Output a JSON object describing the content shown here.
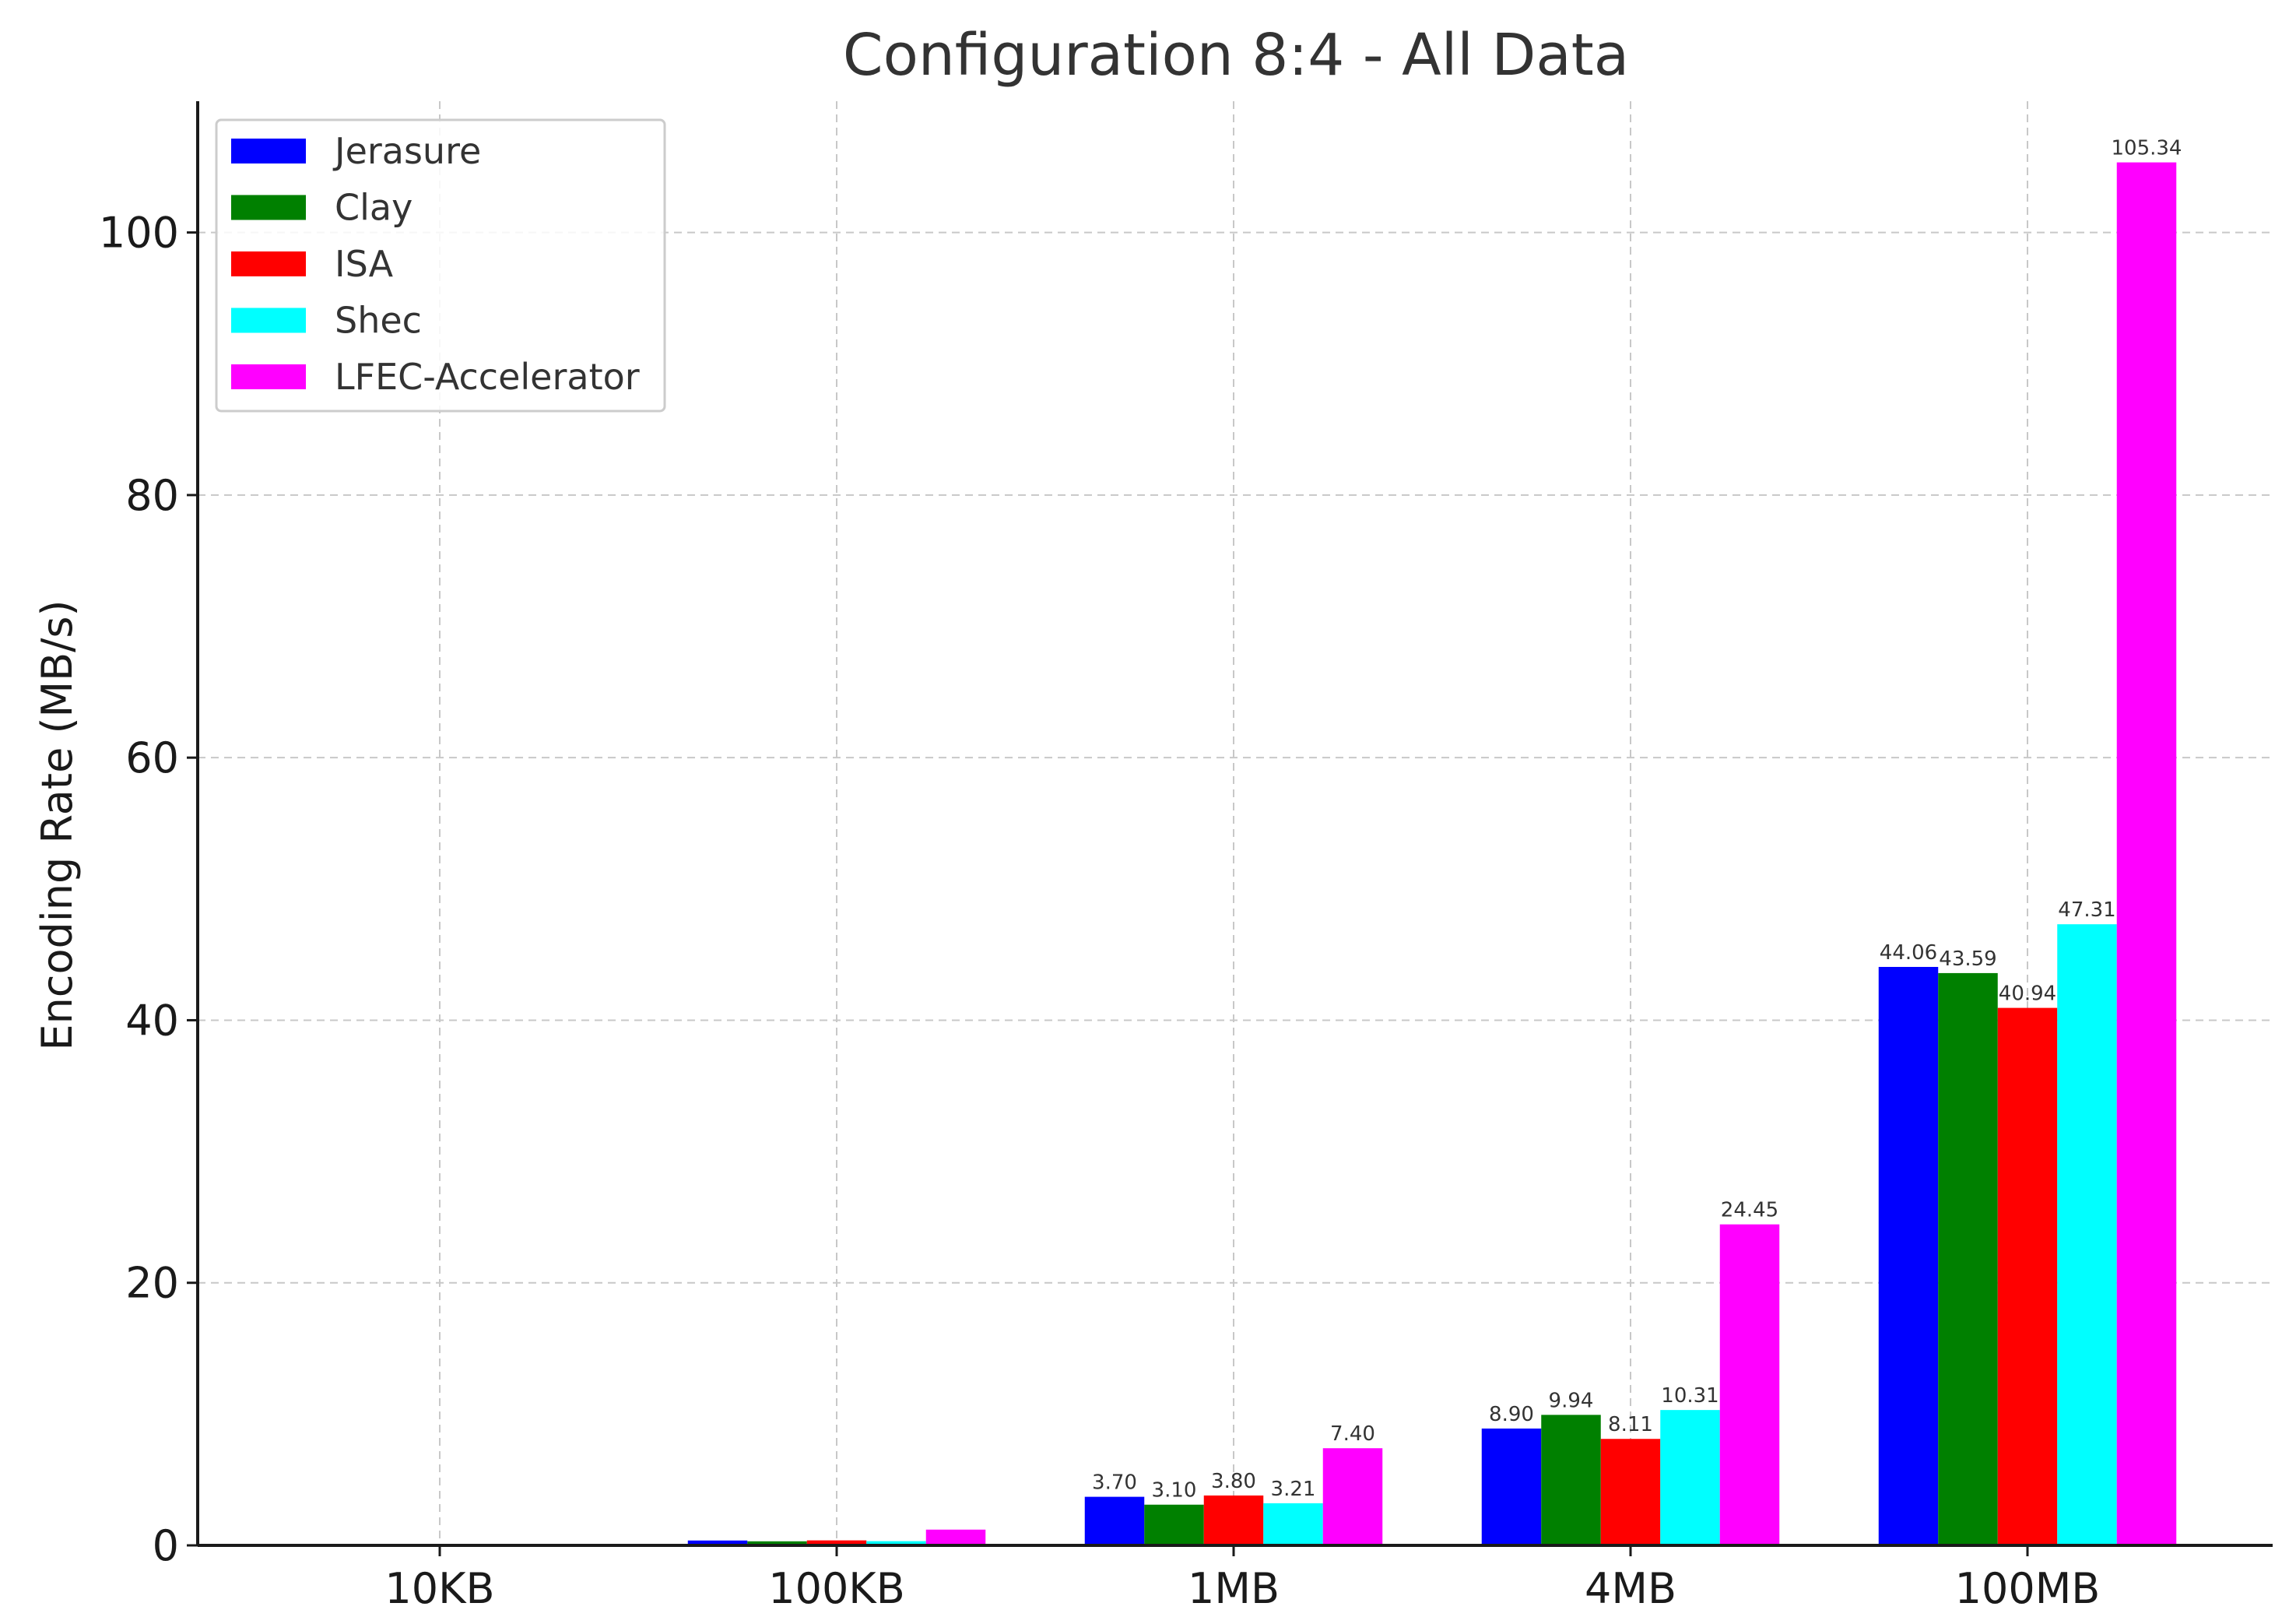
{
  "chart_data": {
    "type": "bar",
    "title": "Configuration 8:4 - All Data",
    "xlabel": "",
    "ylabel": "Encoding Rate (MB/s)",
    "ylim": [
      0,
      110
    ],
    "yticks": [
      0,
      20,
      40,
      60,
      80,
      100
    ],
    "categories": [
      "10KB",
      "100KB",
      "1MB",
      "4MB",
      "100MB"
    ],
    "grid": true,
    "legend_position": "top-left",
    "series": [
      {
        "name": "Jerasure",
        "color": "#0000ff",
        "values": [
          0.04,
          0.37,
          3.7,
          8.9,
          44.06
        ]
      },
      {
        "name": "Clay",
        "color": "#008000",
        "values": [
          0.03,
          0.31,
          3.1,
          9.94,
          43.59
        ]
      },
      {
        "name": "ISA",
        "color": "#ff0000",
        "values": [
          0.04,
          0.38,
          3.8,
          8.11,
          40.94
        ]
      },
      {
        "name": "Shec",
        "color": "#00ffff",
        "values": [
          0.03,
          0.32,
          3.21,
          10.31,
          47.31
        ]
      },
      {
        "name": "LFEC-Accelerator",
        "color": "#ff00ff",
        "values": [
          0.07,
          1.2,
          7.4,
          24.45,
          105.34
        ]
      }
    ],
    "data_labels": [
      [
        "",
        "",
        "3.70",
        "8.90",
        "44.06"
      ],
      [
        "",
        "",
        "3.10",
        "9.94",
        "43.59"
      ],
      [
        "",
        "",
        "3.80",
        "8.11",
        "40.94"
      ],
      [
        "",
        "",
        "3.21",
        "10.31",
        "47.31"
      ],
      [
        "",
        "",
        "7.40",
        "24.45",
        "105.34"
      ]
    ]
  }
}
